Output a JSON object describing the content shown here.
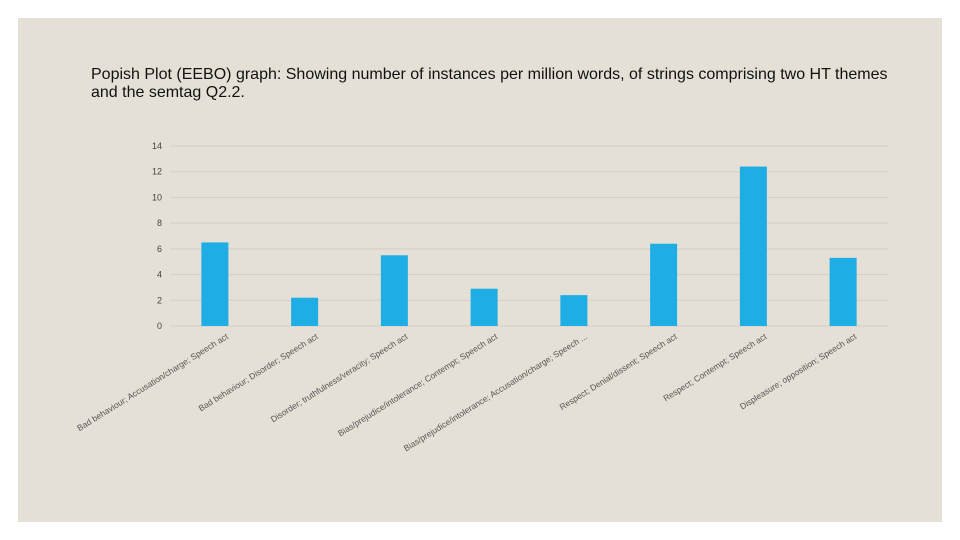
{
  "slide": {
    "title": "Popish Plot (EEBO) graph: Showing number of instances per million words, of strings comprising two HT themes and the semtag Q2.2."
  },
  "colors": {
    "bar": "#1fade5",
    "grid": "#d3cec5",
    "background": "#e5e0d6"
  },
  "chart_data": {
    "type": "bar",
    "title": "Popish Plot (EEBO) graph: Showing number of instances per million words, of strings comprising two HT themes and the semtag Q2.2.",
    "xlabel": "",
    "ylabel": "",
    "ylim": [
      0,
      14
    ],
    "yticks": [
      0,
      2,
      4,
      6,
      8,
      10,
      12,
      14
    ],
    "grid": true,
    "legend": "none",
    "categories": [
      "Bad behaviour; Accusation/charge; Speech act",
      "Bad behaviour; Disorder; Speech act",
      "Disorder; truthfulness/veracity; Speech act",
      "Bias/prejudice/intolerance; Contempt; Speech act",
      "Bias/prejudice/intolerance; Accusation/charge; Speech ...",
      "Respect; Denial/dissent; Speech act",
      "Respect; Contempt; Speech act",
      "Displeasure; opposition; Speech act"
    ],
    "values": [
      6.5,
      2.2,
      5.5,
      2.9,
      2.4,
      6.4,
      12.4,
      5.3
    ]
  }
}
